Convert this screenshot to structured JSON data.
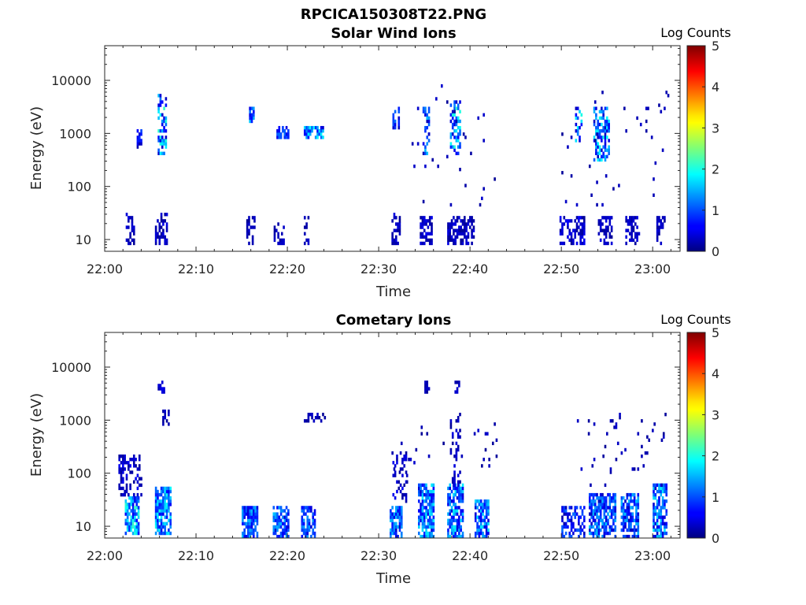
{
  "figure_title": "RPCICA150308T22.PNG",
  "chart_data": [
    {
      "type": "heatmap",
      "title": "Solar Wind Ions",
      "xlabel": "Time",
      "ylabel": "Energy (eV)",
      "x_ticks": [
        "22:00",
        "22:10",
        "22:20",
        "22:30",
        "22:40",
        "22:50",
        "23:00"
      ],
      "x_range_minutes": [
        0,
        63
      ],
      "y_scale": "log",
      "y_ticks": [
        "10",
        "100",
        "1000",
        "10000"
      ],
      "y_range": [
        6,
        45000
      ],
      "colorbar": {
        "label": "Log Counts",
        "range": [
          0,
          5
        ],
        "ticks": [
          "0",
          "1",
          "2",
          "3",
          "4",
          "5"
        ],
        "colormap": "jet"
      },
      "patches": [
        {
          "t": [
            2.3,
            3.2
          ],
          "e": [
            8,
            30
          ],
          "level": [
            0.1,
            0.5
          ],
          "density": 0.45
        },
        {
          "t": [
            3.5,
            4.0
          ],
          "e": [
            550,
            1100
          ],
          "level": [
            0.2,
            1.0
          ],
          "density": 0.7
        },
        {
          "t": [
            5.5,
            6.8
          ],
          "e": [
            8,
            30
          ],
          "level": [
            0.1,
            0.5
          ],
          "density": 0.5
        },
        {
          "t": [
            5.8,
            6.8
          ],
          "e": [
            450,
            5000
          ],
          "level": [
            0.3,
            2.2
          ],
          "density": 0.6
        },
        {
          "t": [
            15.8,
            16.3
          ],
          "e": [
            1800,
            2800
          ],
          "level": [
            0.4,
            1.8
          ],
          "density": 0.7
        },
        {
          "t": [
            15.5,
            16.4
          ],
          "e": [
            8,
            25
          ],
          "level": [
            0.1,
            0.4
          ],
          "density": 0.45
        },
        {
          "t": [
            18.8,
            20.0
          ],
          "e": [
            900,
            1300
          ],
          "level": [
            0.5,
            1.2
          ],
          "density": 0.6
        },
        {
          "t": [
            18.5,
            19.5
          ],
          "e": [
            8,
            20
          ],
          "level": [
            0.1,
            0.4
          ],
          "density": 0.4
        },
        {
          "t": [
            21.8,
            23.8
          ],
          "e": [
            900,
            1300
          ],
          "level": [
            0.3,
            1.9
          ],
          "density": 0.75
        },
        {
          "t": [
            21.8,
            22.4
          ],
          "e": [
            8,
            25
          ],
          "level": [
            0.1,
            0.4
          ],
          "density": 0.4
        },
        {
          "t": [
            31.5,
            32.3
          ],
          "e": [
            1200,
            3000
          ],
          "level": [
            0.3,
            1.2
          ],
          "density": 0.5
        },
        {
          "t": [
            31.4,
            32.2
          ],
          "e": [
            8,
            30
          ],
          "level": [
            0.1,
            0.5
          ],
          "density": 0.5
        },
        {
          "t": [
            34.5,
            35.8
          ],
          "e": [
            8,
            25
          ],
          "level": [
            0.1,
            0.6
          ],
          "density": 0.65
        },
        {
          "t": [
            34.8,
            35.6
          ],
          "e": [
            400,
            3000
          ],
          "level": [
            0.2,
            1.6
          ],
          "density": 0.45
        },
        {
          "t": [
            37.8,
            39.0
          ],
          "e": [
            400,
            4000
          ],
          "level": [
            0.3,
            2.2
          ],
          "density": 0.55
        },
        {
          "t": [
            37.5,
            40.5
          ],
          "e": [
            8,
            25
          ],
          "level": [
            0.1,
            0.5
          ],
          "density": 0.6
        },
        {
          "t": [
            49.8,
            52.6
          ],
          "e": [
            8,
            25
          ],
          "level": [
            0.1,
            0.6
          ],
          "density": 0.45
        },
        {
          "t": [
            51.5,
            52.3
          ],
          "e": [
            700,
            3000
          ],
          "level": [
            0.2,
            2.0
          ],
          "density": 0.4
        },
        {
          "t": [
            53.5,
            55.3
          ],
          "e": [
            300,
            3000
          ],
          "level": [
            0.3,
            2.0
          ],
          "density": 0.6
        },
        {
          "t": [
            54.0,
            55.5
          ],
          "e": [
            8,
            25
          ],
          "level": [
            0.1,
            0.5
          ],
          "density": 0.45
        },
        {
          "t": [
            57.0,
            58.6
          ],
          "e": [
            8,
            25
          ],
          "level": [
            0.1,
            0.5
          ],
          "density": 0.5
        },
        {
          "t": [
            60.4,
            61.3
          ],
          "e": [
            8,
            25
          ],
          "level": [
            0.1,
            0.5
          ],
          "density": 0.5
        },
        {
          "t": [
            50.0,
            62.0
          ],
          "e": [
            40,
            6000
          ],
          "level": [
            0.1,
            0.4
          ],
          "density": 0.015
        },
        {
          "t": [
            33.0,
            43.0
          ],
          "e": [
            40,
            8000
          ],
          "level": [
            0.1,
            0.4
          ],
          "density": 0.012
        }
      ]
    },
    {
      "type": "heatmap",
      "title": "Cometary Ions",
      "xlabel": "Time",
      "ylabel": "Energy (eV)",
      "x_ticks": [
        "22:00",
        "22:10",
        "22:20",
        "22:30",
        "22:40",
        "22:50",
        "23:00"
      ],
      "x_range_minutes": [
        0,
        63
      ],
      "y_scale": "log",
      "y_ticks": [
        "10",
        "100",
        "1000",
        "10000"
      ],
      "y_range": [
        6,
        45000
      ],
      "colorbar": {
        "label": "Log Counts",
        "range": [
          0,
          5
        ],
        "ticks": [
          "0",
          "1",
          "2",
          "3",
          "4",
          "5"
        ],
        "colormap": "jet"
      },
      "patches": [
        {
          "t": [
            2.2,
            3.8
          ],
          "e": [
            7,
            35
          ],
          "level": [
            0.5,
            2.2
          ],
          "density": 0.75
        },
        {
          "t": [
            1.5,
            4.0
          ],
          "e": [
            40,
            220
          ],
          "level": [
            0.1,
            0.6
          ],
          "density": 0.35
        },
        {
          "t": [
            5.5,
            7.2
          ],
          "e": [
            7,
            50
          ],
          "level": [
            0.5,
            2.0
          ],
          "density": 0.75
        },
        {
          "t": [
            5.8,
            6.5
          ],
          "e": [
            3500,
            5000
          ],
          "level": [
            0.2,
            0.6
          ],
          "density": 0.6
        },
        {
          "t": [
            6.3,
            7.0
          ],
          "e": [
            900,
            1400
          ],
          "level": [
            0.1,
            0.4
          ],
          "density": 0.5
        },
        {
          "t": [
            15.0,
            16.6
          ],
          "e": [
            6,
            24
          ],
          "level": [
            0.4,
            1.6
          ],
          "density": 0.8
        },
        {
          "t": [
            18.4,
            20.0
          ],
          "e": [
            6,
            24
          ],
          "level": [
            0.4,
            1.6
          ],
          "density": 0.75
        },
        {
          "t": [
            21.5,
            23.0
          ],
          "e": [
            6,
            24
          ],
          "level": [
            0.4,
            1.4
          ],
          "density": 0.7
        },
        {
          "t": [
            21.8,
            24.0
          ],
          "e": [
            1000,
            1300
          ],
          "level": [
            0.1,
            0.4
          ],
          "density": 0.5
        },
        {
          "t": [
            31.2,
            32.6
          ],
          "e": [
            6,
            24
          ],
          "level": [
            0.3,
            1.6
          ],
          "density": 0.75
        },
        {
          "t": [
            31.5,
            33.0
          ],
          "e": [
            30,
            250
          ],
          "level": [
            0.1,
            0.6
          ],
          "density": 0.25
        },
        {
          "t": [
            34.3,
            36.0
          ],
          "e": [
            6,
            60
          ],
          "level": [
            0.4,
            1.8
          ],
          "density": 0.75
        },
        {
          "t": [
            37.5,
            39.3
          ],
          "e": [
            6,
            60
          ],
          "level": [
            0.4,
            1.8
          ],
          "density": 0.75
        },
        {
          "t": [
            37.8,
            39.0
          ],
          "e": [
            60,
            1200
          ],
          "level": [
            0.1,
            0.5
          ],
          "density": 0.18
        },
        {
          "t": [
            40.5,
            42.0
          ],
          "e": [
            6,
            30
          ],
          "level": [
            0.4,
            1.8
          ],
          "density": 0.75
        },
        {
          "t": [
            35.0,
            35.5
          ],
          "e": [
            3500,
            5000
          ],
          "level": [
            0.1,
            0.4
          ],
          "density": 0.6
        },
        {
          "t": [
            38.3,
            38.8
          ],
          "e": [
            3500,
            5000
          ],
          "level": [
            0.1,
            0.4
          ],
          "density": 0.6
        },
        {
          "t": [
            50.0,
            52.5
          ],
          "e": [
            6,
            24
          ],
          "level": [
            0.2,
            1.2
          ],
          "density": 0.55
        },
        {
          "t": [
            53.0,
            56.0
          ],
          "e": [
            6,
            40
          ],
          "level": [
            0.3,
            1.6
          ],
          "density": 0.7
        },
        {
          "t": [
            56.5,
            58.5
          ],
          "e": [
            6,
            40
          ],
          "level": [
            0.3,
            1.6
          ],
          "density": 0.7
        },
        {
          "t": [
            60.0,
            61.5
          ],
          "e": [
            6,
            60
          ],
          "level": [
            0.3,
            1.8
          ],
          "density": 0.7
        },
        {
          "t": [
            51.5,
            62.0
          ],
          "e": [
            60,
            1200
          ],
          "level": [
            0.1,
            0.4
          ],
          "density": 0.03
        },
        {
          "t": [
            31.0,
            43.0
          ],
          "e": [
            60,
            900
          ],
          "level": [
            0.1,
            0.4
          ],
          "density": 0.02
        }
      ]
    }
  ]
}
